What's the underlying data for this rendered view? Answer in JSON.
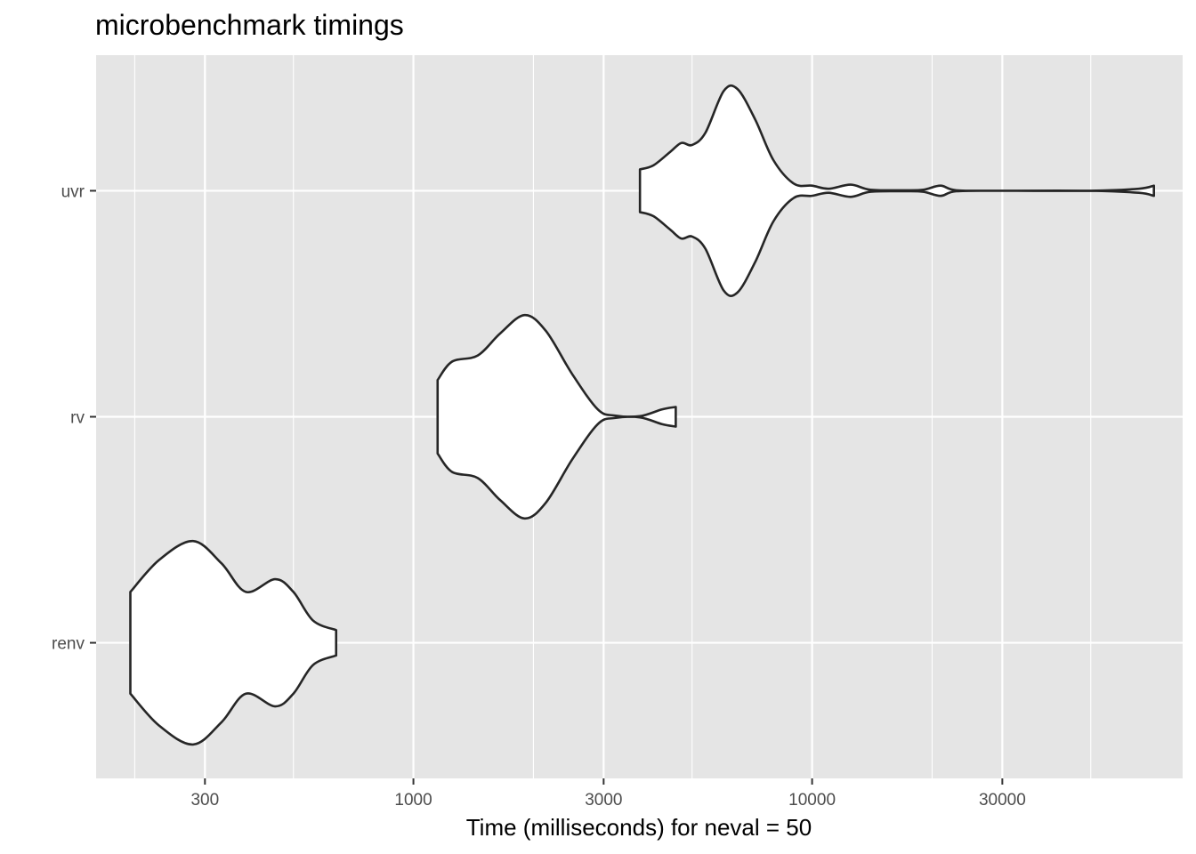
{
  "chart_data": {
    "type": "violin",
    "title": "microbenchmark timings",
    "xlabel": "Time (milliseconds) for neval = 50",
    "ylabel": "",
    "x_scale": "log10",
    "xlim": [
      160,
      85000
    ],
    "x_major_ticks": [
      300,
      1000,
      3000,
      10000,
      30000
    ],
    "x_minor_ticks": [
      200,
      500,
      2000,
      5000,
      20000,
      50000
    ],
    "x_tick_labels": [
      "300",
      "1000",
      "3000",
      "10000",
      "30000"
    ],
    "categories": [
      "uvr",
      "rv",
      "renv"
    ],
    "grid": true,
    "legend": "none",
    "colors": {
      "panel": "#e5e5e5",
      "grid": "#ffffff",
      "fill": "#ffffff",
      "outline": "#262626",
      "tick_text": "#4d4d4d"
    },
    "series": [
      {
        "category": "uvr",
        "min": 3700,
        "max": 72000,
        "density": [
          [
            3700,
            0.21
          ],
          [
            4000,
            0.25
          ],
          [
            4400,
            0.38
          ],
          [
            4700,
            0.47
          ],
          [
            5000,
            0.45
          ],
          [
            5400,
            0.57
          ],
          [
            6000,
            0.98
          ],
          [
            6500,
            1.0
          ],
          [
            7200,
            0.7
          ],
          [
            8000,
            0.3
          ],
          [
            9000,
            0.07
          ],
          [
            10000,
            0.05
          ],
          [
            11000,
            0.02
          ],
          [
            12500,
            0.06
          ],
          [
            14000,
            0.01
          ],
          [
            17000,
            0.005
          ],
          [
            19000,
            0.01
          ],
          [
            21000,
            0.05
          ],
          [
            23000,
            0.005
          ],
          [
            30000,
            0.0
          ],
          [
            50000,
            0.0
          ],
          [
            66000,
            0.02
          ],
          [
            72000,
            0.05
          ]
        ]
      },
      {
        "category": "rv",
        "min": 1150,
        "max": 4550,
        "density": [
          [
            1150,
            0.3
          ],
          [
            1250,
            0.45
          ],
          [
            1450,
            0.5
          ],
          [
            1650,
            0.68
          ],
          [
            1900,
            0.83
          ],
          [
            2150,
            0.7
          ],
          [
            2500,
            0.35
          ],
          [
            2900,
            0.06
          ],
          [
            3200,
            0.01
          ],
          [
            3700,
            0.005
          ],
          [
            4200,
            0.06
          ],
          [
            4550,
            0.08
          ]
        ]
      },
      {
        "category": "renv",
        "min": 195,
        "max": 640,
        "density": [
          [
            195,
            0.16
          ],
          [
            230,
            0.26
          ],
          [
            280,
            0.32
          ],
          [
            330,
            0.25
          ],
          [
            380,
            0.16
          ],
          [
            450,
            0.2
          ],
          [
            500,
            0.16
          ],
          [
            560,
            0.07
          ],
          [
            640,
            0.04
          ]
        ]
      }
    ]
  }
}
